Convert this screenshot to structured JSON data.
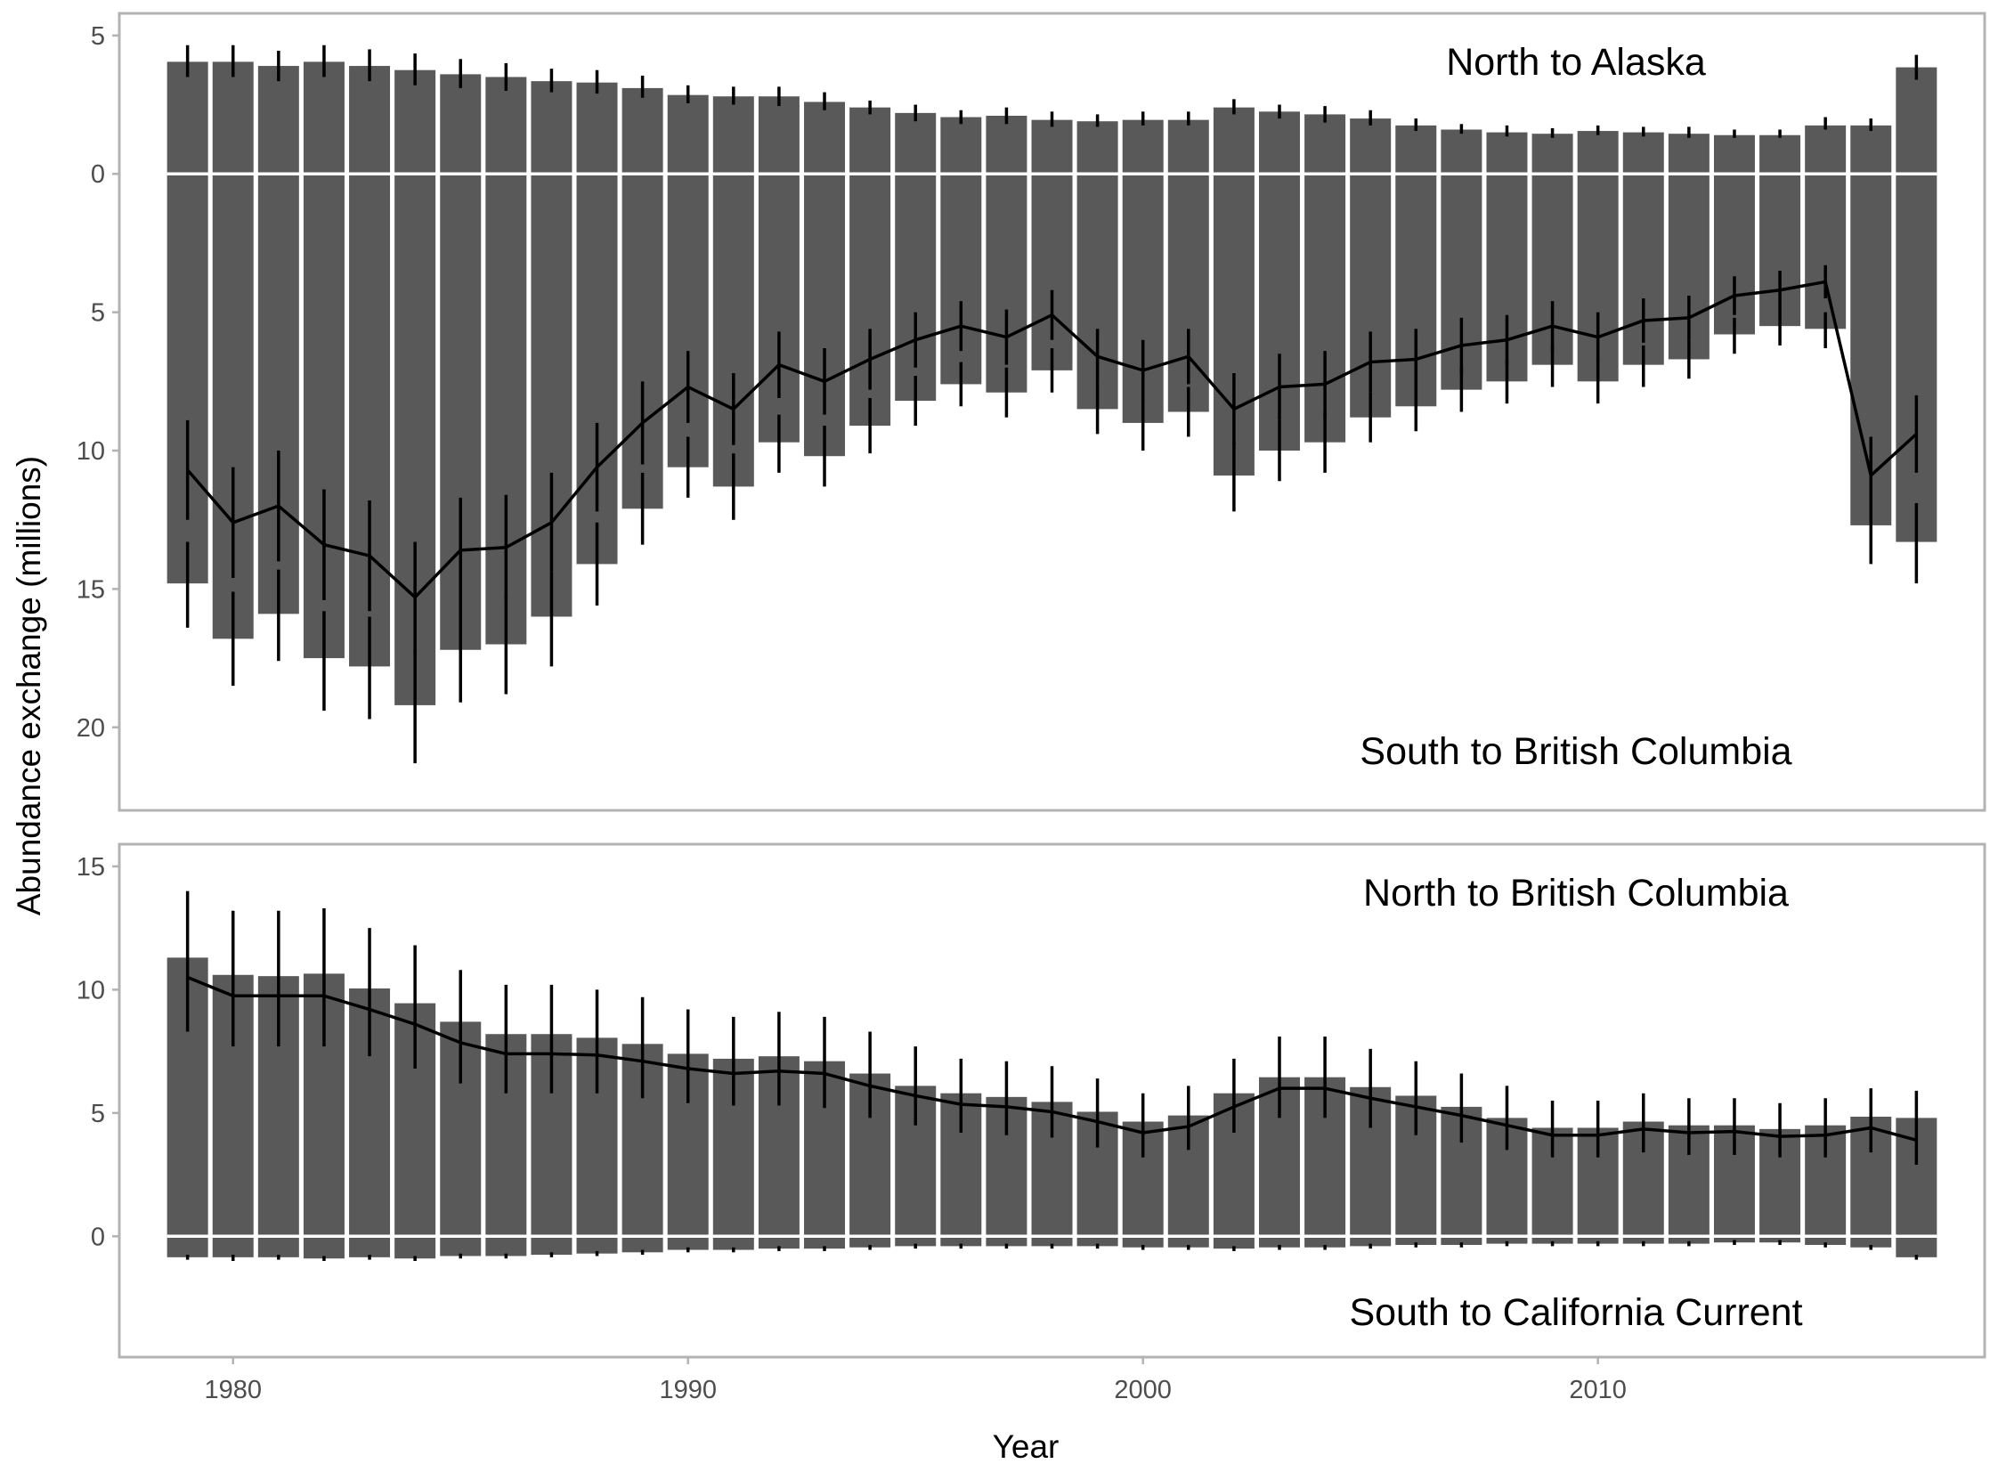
{
  "chart_data": {
    "type": "bar",
    "xlabel": "Year",
    "ylabel": "Abundance exchange (millions)",
    "x_ticks": [
      1980,
      1990,
      2000,
      2010
    ],
    "xlim": [
      1977.5,
      2018.5
    ],
    "colors": {
      "bar": "#595959",
      "line": "#000000",
      "border": "#b3b3b3",
      "zero_line": "#ffffff",
      "tick_text": "#4d4d4d"
    },
    "years": [
      1979,
      1980,
      1981,
      1982,
      1983,
      1984,
      1985,
      1986,
      1987,
      1988,
      1989,
      1990,
      1991,
      1992,
      1993,
      1994,
      1995,
      1996,
      1997,
      1998,
      1999,
      2000,
      2001,
      2002,
      2003,
      2004,
      2005,
      2006,
      2007,
      2008,
      2009,
      2010,
      2011,
      2012,
      2013,
      2014,
      2015,
      2016,
      2017
    ],
    "panels": [
      {
        "ylim": [
          -23.0,
          5.8
        ],
        "y_ticks": [
          -20,
          -15,
          -10,
          -5,
          0,
          5
        ],
        "y_tick_labels": [
          "20",
          "15",
          "10",
          "5",
          "0",
          "5"
        ],
        "annotation_top": "North to Alaska",
        "annotation_bottom": "South to British Columbia",
        "series": [
          {
            "direction": "north",
            "values": [
              4.05,
              4.05,
              3.9,
              4.05,
              3.9,
              3.75,
              3.6,
              3.5,
              3.35,
              3.3,
              3.1,
              2.85,
              2.8,
              2.8,
              2.6,
              2.4,
              2.2,
              2.05,
              2.1,
              1.95,
              1.9,
              1.95,
              1.95,
              2.4,
              2.25,
              2.15,
              2.0,
              1.75,
              1.6,
              1.5,
              1.45,
              1.55,
              1.5,
              1.45,
              1.4,
              1.4,
              1.75,
              1.75,
              3.85
            ],
            "err_low": [
              3.5,
              3.5,
              3.35,
              3.5,
              3.35,
              3.2,
              3.1,
              3.0,
              2.95,
              2.9,
              2.75,
              2.55,
              2.5,
              2.45,
              2.3,
              2.15,
              1.9,
              1.8,
              1.8,
              1.7,
              1.7,
              1.75,
              1.75,
              2.15,
              2.0,
              1.85,
              1.75,
              1.55,
              1.45,
              1.35,
              1.3,
              1.4,
              1.35,
              1.3,
              1.3,
              1.3,
              1.6,
              1.55,
              3.4
            ],
            "err_high": [
              4.65,
              4.65,
              4.45,
              4.65,
              4.5,
              4.35,
              4.15,
              4.0,
              3.8,
              3.75,
              3.55,
              3.2,
              3.15,
              3.15,
              2.95,
              2.65,
              2.5,
              2.3,
              2.4,
              2.25,
              2.15,
              2.25,
              2.25,
              2.7,
              2.5,
              2.45,
              2.3,
              2.0,
              1.8,
              1.75,
              1.65,
              1.75,
              1.7,
              1.7,
              1.6,
              1.6,
              2.05,
              2.0,
              4.3
            ]
          },
          {
            "direction": "south",
            "values": [
              -14.8,
              -16.8,
              -15.9,
              -17.5,
              -17.8,
              -19.2,
              -17.2,
              -17.0,
              -16.0,
              -14.1,
              -12.1,
              -10.6,
              -11.3,
              -9.7,
              -10.2,
              -9.1,
              -8.2,
              -7.6,
              -7.9,
              -7.1,
              -8.5,
              -9.0,
              -8.6,
              -10.9,
              -10.0,
              -9.7,
              -8.8,
              -8.4,
              -7.8,
              -7.5,
              -6.9,
              -7.5,
              -6.9,
              -6.7,
              -5.8,
              -5.5,
              -5.6,
              -12.7,
              -13.3
            ],
            "err_low": [
              -16.4,
              -18.5,
              -17.6,
              -19.4,
              -19.7,
              -21.3,
              -19.1,
              -18.8,
              -17.8,
              -15.6,
              -13.4,
              -11.7,
              -12.5,
              -10.8,
              -11.3,
              -10.1,
              -9.1,
              -8.4,
              -8.8,
              -7.9,
              -9.4,
              -10.0,
              -9.5,
              -12.2,
              -11.1,
              -10.8,
              -9.7,
              -9.3,
              -8.6,
              -8.3,
              -7.7,
              -8.3,
              -7.7,
              -7.4,
              -6.5,
              -6.2,
              -6.3,
              -14.1,
              -14.8
            ],
            "err_high": [
              -13.3,
              -15.1,
              -14.3,
              -15.8,
              -16.0,
              -17.2,
              -15.4,
              -15.2,
              -14.4,
              -12.6,
              -10.8,
              -9.5,
              -10.1,
              -8.7,
              -9.1,
              -8.1,
              -7.3,
              -6.8,
              -7.0,
              -6.3,
              -7.6,
              -8.1,
              -7.7,
              -9.7,
              -8.9,
              -8.6,
              -7.9,
              -7.5,
              -7.0,
              -6.7,
              -6.2,
              -6.7,
              -6.2,
              -6.0,
              -5.2,
              -4.9,
              -5.0,
              -11.3,
              -11.9
            ]
          },
          {
            "direction": "net",
            "values": [
              -10.7,
              -12.6,
              -12.0,
              -13.4,
              -13.8,
              -15.3,
              -13.6,
              -13.5,
              -12.6,
              -10.6,
              -9.0,
              -7.7,
              -8.5,
              -6.9,
              -7.5,
              -6.7,
              -6.0,
              -5.5,
              -5.9,
              -5.1,
              -6.6,
              -7.1,
              -6.6,
              -8.5,
              -7.7,
              -7.6,
              -6.8,
              -6.7,
              -6.2,
              -6.0,
              -5.5,
              -5.9,
              -5.3,
              -5.2,
              -4.4,
              -4.2,
              -3.9,
              -10.9,
              -9.4
            ],
            "err_low": [
              -12.5,
              -14.6,
              -14.0,
              -15.4,
              -15.8,
              -17.3,
              -15.5,
              -15.4,
              -14.4,
              -12.2,
              -10.5,
              -9.0,
              -9.8,
              -8.1,
              -8.7,
              -7.8,
              -7.0,
              -6.4,
              -6.9,
              -6.0,
              -7.6,
              -8.2,
              -7.6,
              -9.8,
              -8.9,
              -8.8,
              -7.9,
              -7.8,
              -7.2,
              -6.9,
              -6.4,
              -6.8,
              -6.1,
              -6.0,
              -5.1,
              -4.9,
              -4.5,
              -12.3,
              -10.8
            ],
            "err_high": [
              -8.9,
              -10.6,
              -10.0,
              -11.4,
              -11.8,
              -13.3,
              -11.7,
              -11.6,
              -10.8,
              -9.0,
              -7.5,
              -6.4,
              -7.2,
              -5.7,
              -6.3,
              -5.6,
              -5.0,
              -4.6,
              -4.9,
              -4.2,
              -5.6,
              -6.0,
              -5.6,
              -7.2,
              -6.5,
              -6.4,
              -5.7,
              -5.6,
              -5.2,
              -5.1,
              -4.6,
              -5.0,
              -4.5,
              -4.4,
              -3.7,
              -3.5,
              -3.3,
              -9.5,
              -8.0
            ]
          }
        ]
      },
      {
        "ylim": [
          -4.9,
          15.9
        ],
        "y_ticks": [
          0,
          5,
          10,
          15
        ],
        "y_tick_labels": [
          "0",
          "5",
          "10",
          "15"
        ],
        "annotation_top": "North to British Columbia",
        "annotation_bottom": "South to California Current",
        "series": [
          {
            "direction": "north",
            "values": [
              11.3,
              10.6,
              10.55,
              10.65,
              10.05,
              9.45,
              8.7,
              8.2,
              8.2,
              8.05,
              7.8,
              7.4,
              7.2,
              7.3,
              7.1,
              6.6,
              6.1,
              5.8,
              5.65,
              5.45,
              5.05,
              4.65,
              4.9,
              5.8,
              6.45,
              6.45,
              6.05,
              5.7,
              5.25,
              4.8,
              4.4,
              4.4,
              4.65,
              4.5,
              4.5,
              4.35,
              4.5,
              4.85,
              4.8
            ],
            "err_low": [],
            "err_high": []
          },
          {
            "direction": "south",
            "values": [
              -0.85,
              -0.85,
              -0.85,
              -0.9,
              -0.85,
              -0.9,
              -0.8,
              -0.8,
              -0.75,
              -0.7,
              -0.65,
              -0.55,
              -0.55,
              -0.5,
              -0.5,
              -0.45,
              -0.4,
              -0.4,
              -0.4,
              -0.4,
              -0.4,
              -0.45,
              -0.45,
              -0.5,
              -0.45,
              -0.45,
              -0.4,
              -0.35,
              -0.35,
              -0.3,
              -0.3,
              -0.3,
              -0.3,
              -0.3,
              -0.25,
              -0.25,
              -0.35,
              -0.45,
              -0.85
            ],
            "err_low": [
              -0.95,
              -1.0,
              -0.95,
              -1.0,
              -0.95,
              -1.0,
              -0.9,
              -0.9,
              -0.85,
              -0.8,
              -0.75,
              -0.65,
              -0.65,
              -0.6,
              -0.6,
              -0.55,
              -0.5,
              -0.5,
              -0.5,
              -0.5,
              -0.5,
              -0.55,
              -0.55,
              -0.6,
              -0.55,
              -0.55,
              -0.5,
              -0.45,
              -0.45,
              -0.4,
              -0.4,
              -0.4,
              -0.4,
              -0.4,
              -0.35,
              -0.35,
              -0.45,
              -0.55,
              -0.95
            ],
            "err_high": [
              -0.75,
              -0.75,
              -0.75,
              -0.8,
              -0.75,
              -0.8,
              -0.7,
              -0.7,
              -0.65,
              -0.6,
              -0.55,
              -0.45,
              -0.45,
              -0.4,
              -0.4,
              -0.35,
              -0.3,
              -0.3,
              -0.3,
              -0.3,
              -0.3,
              -0.35,
              -0.35,
              -0.4,
              -0.35,
              -0.35,
              -0.3,
              -0.25,
              -0.25,
              -0.2,
              -0.2,
              -0.2,
              -0.2,
              -0.2,
              -0.15,
              -0.15,
              -0.25,
              -0.35,
              -0.75
            ]
          },
          {
            "direction": "net",
            "values": [
              10.5,
              9.75,
              9.75,
              9.75,
              9.2,
              8.6,
              7.85,
              7.4,
              7.4,
              7.35,
              7.1,
              6.8,
              6.6,
              6.7,
              6.6,
              6.1,
              5.7,
              5.35,
              5.25,
              5.05,
              4.65,
              4.2,
              4.45,
              5.25,
              6.0,
              6.0,
              5.6,
              5.25,
              4.9,
              4.5,
              4.1,
              4.1,
              4.35,
              4.2,
              4.25,
              4.05,
              4.1,
              4.4,
              3.9
            ],
            "err_low": [
              8.3,
              7.7,
              7.7,
              7.7,
              7.3,
              6.8,
              6.2,
              5.8,
              5.8,
              5.8,
              5.6,
              5.4,
              5.3,
              5.3,
              5.2,
              4.8,
              4.5,
              4.2,
              4.1,
              4.0,
              3.6,
              3.2,
              3.5,
              4.2,
              4.8,
              4.8,
              4.4,
              4.1,
              3.8,
              3.5,
              3.2,
              3.2,
              3.4,
              3.3,
              3.3,
              3.2,
              3.2,
              3.4,
              2.9
            ],
            "err_high": [
              14.0,
              13.2,
              13.2,
              13.3,
              12.5,
              11.8,
              10.8,
              10.2,
              10.2,
              10.0,
              9.7,
              9.2,
              8.9,
              9.1,
              8.9,
              8.3,
              7.7,
              7.2,
              7.1,
              6.9,
              6.4,
              5.8,
              6.1,
              7.2,
              8.1,
              8.1,
              7.6,
              7.1,
              6.6,
              6.1,
              5.5,
              5.5,
              5.8,
              5.6,
              5.6,
              5.4,
              5.6,
              6.0,
              5.9
            ]
          }
        ]
      }
    ]
  }
}
